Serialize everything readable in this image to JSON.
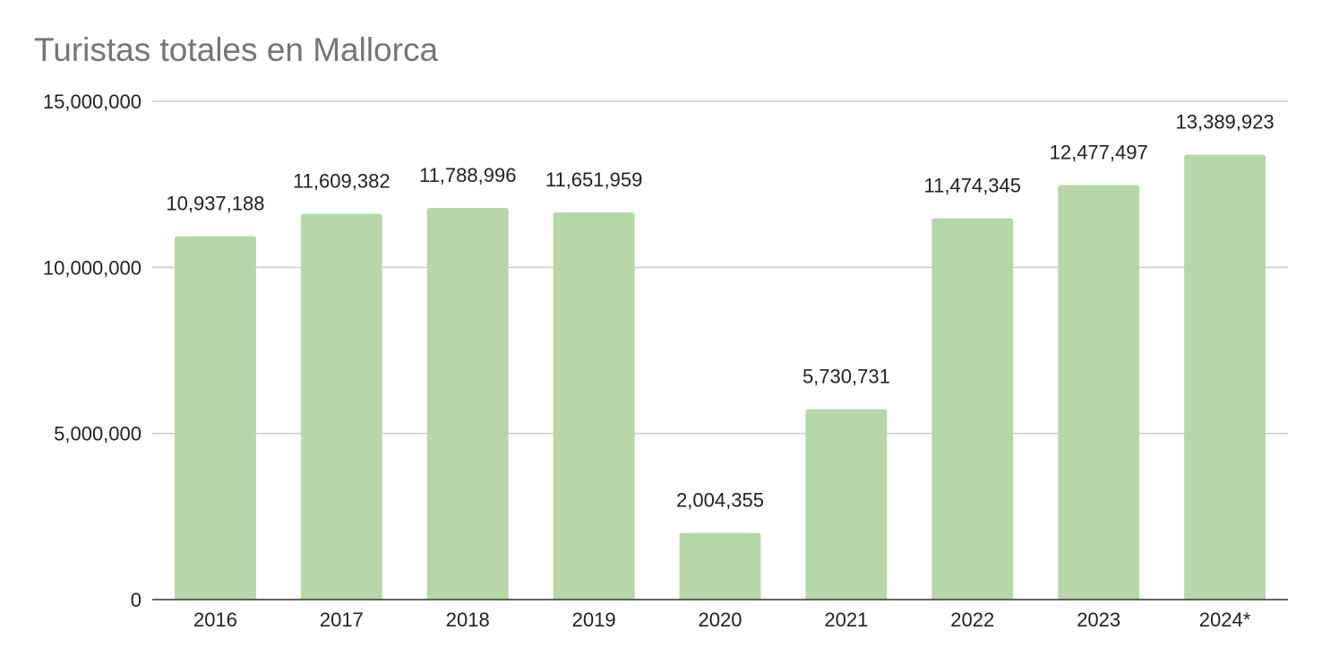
{
  "chart_data": {
    "type": "bar",
    "title": "Turistas totales en Mallorca",
    "categories": [
      "2016",
      "2017",
      "2018",
      "2019",
      "2020",
      "2021",
      "2022",
      "2023",
      "2024*"
    ],
    "values": [
      10937188,
      11609382,
      11788996,
      11651959,
      2004355,
      5730731,
      11474345,
      12477497,
      13389923
    ],
    "data_labels": [
      "10,937,188",
      "11,609,382",
      "11,788,996",
      "11,651,959",
      "2,004,355",
      "5,730,731",
      "11,474,345",
      "12,477,497",
      "13,389,923"
    ],
    "ylim": [
      0,
      15000000
    ],
    "yticks": [
      0,
      5000000,
      10000000,
      15000000
    ],
    "ytick_labels": [
      "0",
      "5,000,000",
      "10,000,000",
      "15,000,000"
    ],
    "xlabel": "",
    "ylabel": "",
    "bar_color": "#b6d7a8",
    "grid": true,
    "legend": "none"
  }
}
